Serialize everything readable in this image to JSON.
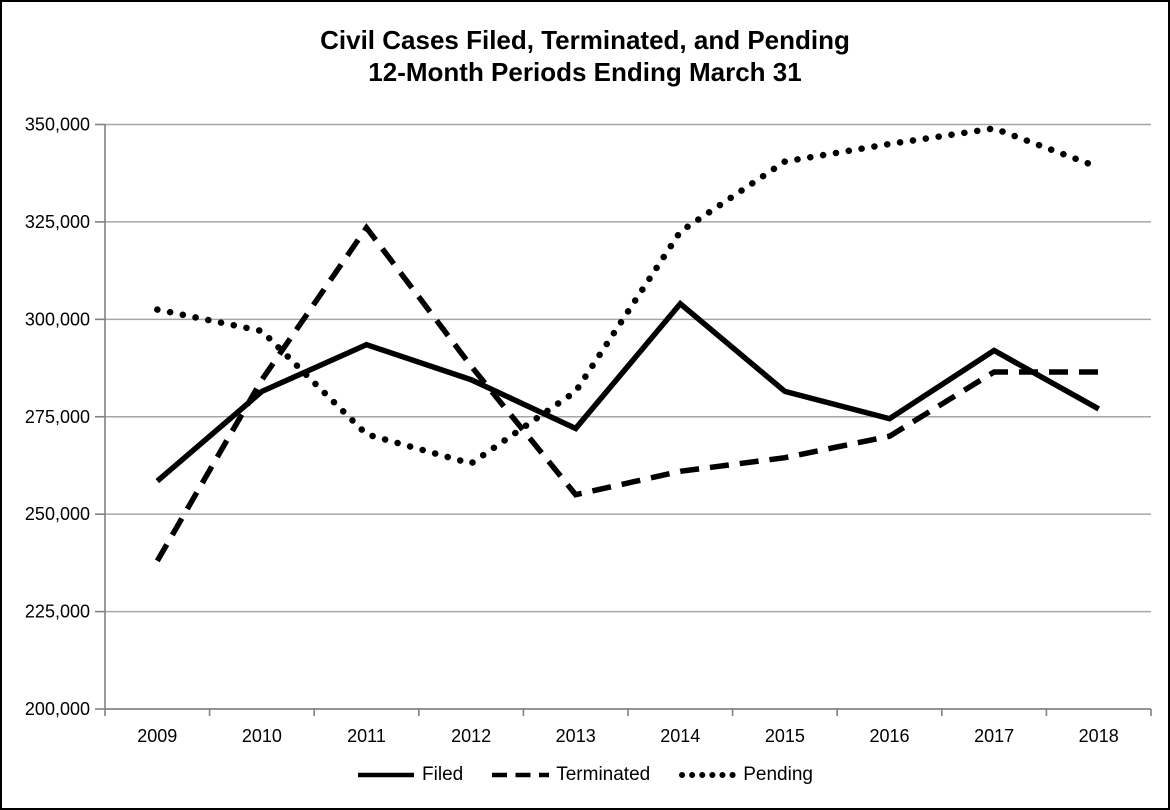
{
  "chart_data": {
    "type": "line",
    "title": "Civil Cases Filed, Terminated, and Pending",
    "subtitle": "12-Month Periods Ending March 31",
    "categories": [
      "2009",
      "2010",
      "2011",
      "2012",
      "2013",
      "2014",
      "2015",
      "2016",
      "2017",
      "2018"
    ],
    "series": [
      {
        "name": "Filed",
        "style": "solid",
        "values": [
          258500,
          281500,
          293500,
          284500,
          272000,
          304000,
          281500,
          274500,
          292000,
          277000
        ]
      },
      {
        "name": "Terminated",
        "style": "dashed",
        "values": [
          238000,
          284500,
          323500,
          288000,
          255000,
          261000,
          264500,
          270000,
          286500,
          286500
        ]
      },
      {
        "name": "Pending",
        "style": "dotted",
        "values": [
          302500,
          297000,
          270500,
          263000,
          281500,
          322500,
          340500,
          345000,
          349000,
          339000
        ]
      }
    ],
    "ylim": [
      200000,
      350000
    ],
    "yticks": [
      200000,
      225000,
      250000,
      275000,
      300000,
      325000,
      350000
    ],
    "ytick_labels": [
      "200,000",
      "225,000",
      "250,000",
      "275,000",
      "300,000",
      "325,000",
      "350,000"
    ],
    "grid": "horizontal",
    "legend_position": "bottom",
    "colors": {
      "line": "#000000",
      "gridline": "#A6A6A6",
      "axis": "#808080",
      "text": "#000000",
      "background": "#FFFFFF",
      "border": "#000000"
    }
  }
}
